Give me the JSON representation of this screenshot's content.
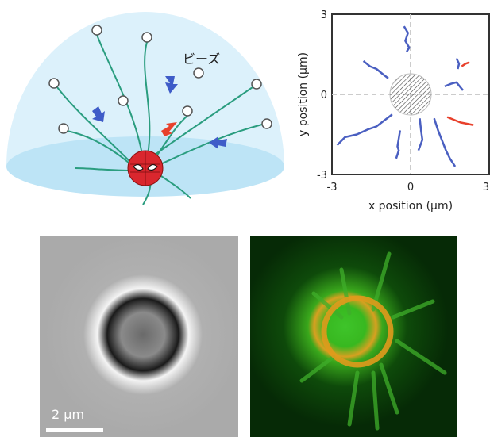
{
  "diagram": {
    "label": "ビーズ"
  },
  "chart_data": {
    "type": "line",
    "xlabel": "x position (μm)",
    "ylabel": "y position (μm)",
    "xlim": [
      -3,
      3
    ],
    "ylim": [
      -3,
      3
    ],
    "xticks": [
      -3,
      0,
      3
    ],
    "yticks": [
      -3,
      0,
      3
    ],
    "grid": true,
    "series": [
      {
        "color": "#4a5fc1",
        "x": [
          -0.25,
          -0.1,
          -0.2,
          -0.05,
          -0.15
        ],
        "y": [
          2.55,
          2.3,
          2.0,
          1.75,
          1.6
        ]
      },
      {
        "color": "#4a5fc1",
        "x": [
          -1.8,
          -1.55,
          -1.3,
          -1.05,
          -0.85
        ],
        "y": [
          1.25,
          1.05,
          0.95,
          0.75,
          0.6
        ]
      },
      {
        "color": "#4a5fc1",
        "x": [
          -2.8,
          -2.5,
          -2.05,
          -1.6,
          -1.3,
          -0.7
        ],
        "y": [
          -1.9,
          -1.6,
          -1.5,
          -1.3,
          -1.2,
          -0.75
        ]
      },
      {
        "color": "#4a5fc1",
        "x": [
          -0.55,
          -0.45,
          -0.5,
          -0.4
        ],
        "y": [
          -2.4,
          -2.1,
          -1.95,
          -1.35
        ]
      },
      {
        "color": "#4a5fc1",
        "x": [
          0.3,
          0.45,
          0.4,
          0.35
        ],
        "y": [
          -2.1,
          -1.7,
          -1.35,
          -0.9
        ]
      },
      {
        "color": "#4a5fc1",
        "x": [
          1.7,
          1.5,
          1.35,
          1.05,
          0.9
        ],
        "y": [
          -2.7,
          -2.4,
          -2.1,
          -1.35,
          -0.9
        ]
      },
      {
        "color": "#4a5fc1",
        "x": [
          1.3,
          1.55,
          1.75,
          2.0
        ],
        "y": [
          0.3,
          0.4,
          0.45,
          0.15
        ]
      },
      {
        "color": "#4a5fc1",
        "x": [
          1.75,
          1.85,
          1.8
        ],
        "y": [
          1.35,
          1.15,
          0.95
        ]
      },
      {
        "color": "#e8412c",
        "x": [
          1.95,
          2.1,
          2.25
        ],
        "y": [
          1.05,
          1.15,
          1.2
        ]
      },
      {
        "color": "#e8412c",
        "x": [
          1.4,
          1.65,
          1.9,
          2.15,
          2.4
        ],
        "y": [
          -0.85,
          -0.95,
          -1.05,
          -1.1,
          -1.15
        ]
      }
    ]
  },
  "images": {
    "scale_bar": "2 μm"
  }
}
